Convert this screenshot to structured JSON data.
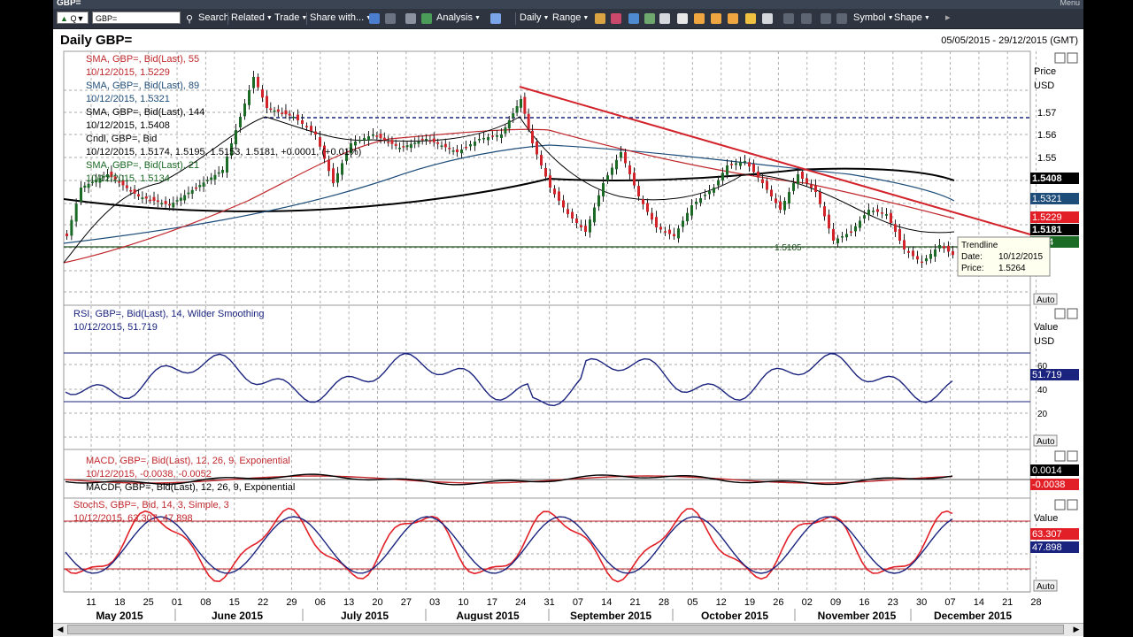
{
  "window": {
    "title": "GBP=",
    "menu_label": "Menu"
  },
  "toolbar": {
    "ric_field_prefix": "Q",
    "ric_value": "GBP=",
    "items": [
      "Search",
      "Related",
      "Trade",
      "Share with...",
      "Analysis",
      "Daily",
      "Range",
      "Symbol",
      "Shape"
    ]
  },
  "chart": {
    "title": "Daily GBP=",
    "date_range": "05/05/2015 - 29/12/2015 (GMT)",
    "price_pane": {
      "axis_title": "Price",
      "axis_unit": "USD",
      "legend": [
        {
          "label": "SMA, GBP=, Bid(Last), 55",
          "value": "10/12/2015, 1.5229",
          "color": "#c0282d"
        },
        {
          "label": "SMA, GBP=, Bid(Last), 89",
          "value": "10/12/2015, 1.5321",
          "color": "#1e4d7a"
        },
        {
          "label": "SMA, GBP=, Bid(Last), 144",
          "value": "10/12/2015, 1.5408",
          "color": "#000000"
        },
        {
          "label": "Cndl, GBP=, Bid",
          "value": "10/12/2015, 1.5174, 1.5195, 1.5153, 1.5181, +0.0001, (+0.01%)",
          "color": "#000000"
        },
        {
          "label": "SMA, GBP=, Bid(Last), 21",
          "value": "10/12/2015, 1.5134",
          "color": "#1b6a25"
        }
      ],
      "ticks": [
        "1.57",
        "1.56",
        "1.55"
      ],
      "support_label": "1.5105",
      "price_tags": [
        {
          "text": "1.5408",
          "bg": "#000000"
        },
        {
          "text": "1.5321",
          "bg": "#1e4d7a"
        },
        {
          "text": "1.5229",
          "bg": "#e21f26"
        },
        {
          "text": "1.5181",
          "bg": "#000000"
        },
        {
          "text": "34",
          "bg": "#1b6a25"
        }
      ],
      "tooltip": {
        "title": "Trendline",
        "date_label": "Date:",
        "date_value": "10/12/2015",
        "price_label": "Price:",
        "price_value": "1.5264"
      },
      "auto_label": "Auto"
    },
    "rsi_pane": {
      "legend_label": "RSI, GBP=, Bid(Last), 14, Wilder Smoothing",
      "legend_value": "10/12/2015, 51.719",
      "axis_title": "Value",
      "axis_unit": "USD",
      "ticks": [
        "60",
        "40",
        "20"
      ],
      "value_tag": "51.719",
      "auto_label": "Auto"
    },
    "macd_pane": {
      "legend_label": "MACD, GBP=, Bid(Last), 12, 26, 9, Exponential",
      "legend_value": "10/12/2015, -0.0038, -0.0052",
      "legend2_label": "MACDF, GBP=, Bid(Last), 12, 26, 9, Exponential",
      "tags": [
        "0.0014",
        "-0.0038"
      ]
    },
    "stoch_pane": {
      "legend_label": "StochS, GBP=, Bid, 14, 3, Simple, 3",
      "legend_value": "10/12/2015, 63.307, 47.898",
      "axis_title": "Value",
      "tags": [
        "63.307",
        "47.898"
      ],
      "auto_label": "Auto"
    },
    "x_axis": {
      "days": [
        "11",
        "18",
        "25",
        "01",
        "08",
        "15",
        "22",
        "29",
        "06",
        "13",
        "20",
        "27",
        "03",
        "10",
        "17",
        "24",
        "31",
        "07",
        "14",
        "21",
        "28",
        "05",
        "12",
        "19",
        "26",
        "02",
        "09",
        "16",
        "23",
        "30",
        "07",
        "14",
        "21",
        "28"
      ],
      "months": [
        "May 2015",
        "June 2015",
        "July 2015",
        "August 2015",
        "September 2015",
        "October 2015",
        "November 2015",
        "December 2015"
      ]
    }
  }
}
